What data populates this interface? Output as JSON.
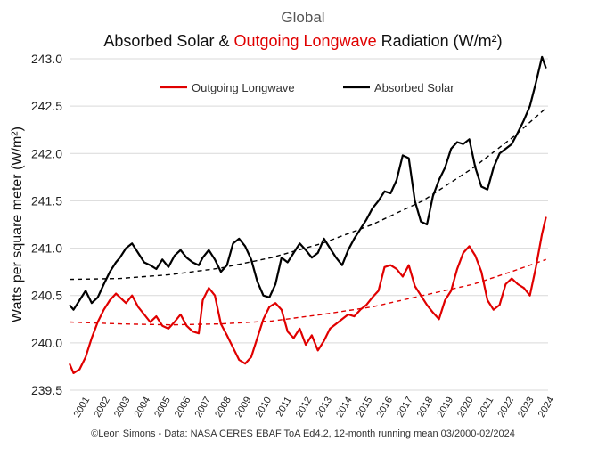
{
  "supertitle": "Global",
  "title": {
    "part1": "Absorbed Solar & ",
    "part2": "Outgoing Longwave",
    "part3": " Radiation  (W/m²)"
  },
  "footer": "©Leon Simons -  Data: NASA CERES EBAF ToA Ed4.2, 12-month running mean 03/2000-02/2024",
  "colors": {
    "absorbed_solar": "#000000",
    "outgoing_longwave": "#e00000",
    "highlight": "#e00000"
  },
  "chart_data": {
    "type": "line",
    "ylabel": "Watts per square meter (W/m²)",
    "xlabel": "",
    "ylim": [
      239.5,
      243.0
    ],
    "xlim": [
      2000.5,
      2024.2
    ],
    "yticks": [
      239.5,
      240.0,
      240.5,
      241.0,
      241.5,
      242.0,
      242.5,
      243.0
    ],
    "yticklabels": [
      "239.5",
      "240.0",
      "240.5",
      "241.0",
      "241.5",
      "242.0",
      "242.5",
      "243.0"
    ],
    "xticks": [
      "2001",
      "2002",
      "2003",
      "2004",
      "2005",
      "2006",
      "2007",
      "2008",
      "2009",
      "2010",
      "2011",
      "2012",
      "2013",
      "2014",
      "2015",
      "2016",
      "2017",
      "2018",
      "2019",
      "2020",
      "2021",
      "2022",
      "2023",
      "2024"
    ],
    "grid": "horizontal",
    "legend": "top",
    "series": [
      {
        "name": "Outgoing Longwave",
        "color": "#e00000",
        "style": "solid",
        "x": [
          2000.5,
          2000.7,
          2001.0,
          2001.3,
          2001.6,
          2001.9,
          2002.2,
          2002.5,
          2002.8,
          2003.0,
          2003.3,
          2003.6,
          2003.9,
          2004.2,
          2004.5,
          2004.8,
          2005.1,
          2005.4,
          2005.7,
          2006.0,
          2006.3,
          2006.6,
          2006.9,
          2007.1,
          2007.4,
          2007.7,
          2008.0,
          2008.3,
          2008.6,
          2008.9,
          2009.2,
          2009.5,
          2009.8,
          2010.1,
          2010.4,
          2010.7,
          2011.0,
          2011.3,
          2011.6,
          2011.9,
          2012.2,
          2012.5,
          2012.8,
          2013.1,
          2013.4,
          2013.7,
          2014.0,
          2014.3,
          2014.6,
          2014.9,
          2015.2,
          2015.5,
          2015.8,
          2016.1,
          2016.4,
          2016.7,
          2017.0,
          2017.3,
          2017.6,
          2017.9,
          2018.2,
          2018.5,
          2018.8,
          2019.1,
          2019.4,
          2019.7,
          2020.0,
          2020.3,
          2020.6,
          2020.9,
          2021.2,
          2021.5,
          2021.8,
          2022.1,
          2022.4,
          2022.7,
          2023.0,
          2023.3,
          2023.6,
          2023.9,
          2024.1
        ],
        "y": [
          239.78,
          239.68,
          239.72,
          239.85,
          240.05,
          240.22,
          240.35,
          240.45,
          240.52,
          240.48,
          240.42,
          240.5,
          240.38,
          240.3,
          240.22,
          240.28,
          240.18,
          240.15,
          240.22,
          240.3,
          240.18,
          240.12,
          240.1,
          240.45,
          240.58,
          240.5,
          240.2,
          240.08,
          239.95,
          239.82,
          239.78,
          239.85,
          240.05,
          240.25,
          240.38,
          240.42,
          240.35,
          240.12,
          240.05,
          240.15,
          239.98,
          240.08,
          239.92,
          240.02,
          240.15,
          240.2,
          240.25,
          240.3,
          240.28,
          240.35,
          240.4,
          240.48,
          240.55,
          240.8,
          240.82,
          240.78,
          240.7,
          240.82,
          240.6,
          240.5,
          240.4,
          240.32,
          240.25,
          240.45,
          240.55,
          240.78,
          240.95,
          241.02,
          240.92,
          240.75,
          240.45,
          240.35,
          240.4,
          240.62,
          240.68,
          240.62,
          240.58,
          240.5,
          240.8,
          241.15,
          241.33
        ]
      },
      {
        "name": "Absorbed Solar",
        "color": "#000000",
        "style": "solid",
        "x": [
          2000.5,
          2000.7,
          2001.0,
          2001.3,
          2001.6,
          2001.9,
          2002.2,
          2002.5,
          2002.8,
          2003.0,
          2003.3,
          2003.6,
          2003.9,
          2004.2,
          2004.5,
          2004.8,
          2005.1,
          2005.4,
          2005.7,
          2006.0,
          2006.3,
          2006.6,
          2006.9,
          2007.1,
          2007.4,
          2007.7,
          2008.0,
          2008.3,
          2008.6,
          2008.9,
          2009.2,
          2009.5,
          2009.8,
          2010.1,
          2010.4,
          2010.7,
          2011.0,
          2011.3,
          2011.6,
          2011.9,
          2012.2,
          2012.5,
          2012.8,
          2013.1,
          2013.4,
          2013.7,
          2014.0,
          2014.3,
          2014.6,
          2014.9,
          2015.2,
          2015.5,
          2015.8,
          2016.1,
          2016.4,
          2016.7,
          2017.0,
          2017.3,
          2017.6,
          2017.9,
          2018.2,
          2018.5,
          2018.8,
          2019.1,
          2019.4,
          2019.7,
          2020.0,
          2020.3,
          2020.6,
          2020.9,
          2021.2,
          2021.5,
          2021.8,
          2022.1,
          2022.4,
          2022.7,
          2023.0,
          2023.3,
          2023.6,
          2023.9,
          2024.1
        ],
        "y": [
          240.4,
          240.35,
          240.45,
          240.55,
          240.42,
          240.48,
          240.62,
          240.75,
          240.85,
          240.9,
          241.0,
          241.05,
          240.95,
          240.85,
          240.82,
          240.78,
          240.88,
          240.8,
          240.92,
          240.98,
          240.9,
          240.85,
          240.82,
          240.9,
          240.98,
          240.88,
          240.75,
          240.82,
          241.05,
          241.1,
          241.02,
          240.88,
          240.65,
          240.5,
          240.48,
          240.62,
          240.9,
          240.85,
          240.95,
          241.05,
          240.98,
          240.9,
          240.95,
          241.1,
          241.0,
          240.9,
          240.82,
          240.98,
          241.1,
          241.2,
          241.3,
          241.42,
          241.5,
          241.6,
          241.58,
          241.72,
          241.98,
          241.95,
          241.5,
          241.28,
          241.25,
          241.55,
          241.72,
          241.85,
          242.05,
          242.12,
          242.1,
          242.15,
          241.85,
          241.65,
          241.62,
          241.85,
          242.0,
          242.05,
          242.1,
          242.22,
          242.35,
          242.5,
          242.75,
          243.02,
          242.9
        ]
      },
      {
        "name": "Outgoing Longwave trend",
        "color": "#e00000",
        "style": "dashed",
        "x": [
          2000.5,
          2003,
          2005.5,
          2008,
          2010.5,
          2013,
          2015.5,
          2018,
          2020.5,
          2022.5,
          2024.1
        ],
        "y": [
          240.22,
          240.2,
          240.19,
          240.2,
          240.23,
          240.3,
          240.38,
          240.5,
          240.62,
          240.76,
          240.88
        ]
      },
      {
        "name": "Absorbed Solar trend",
        "color": "#000000",
        "style": "dashed",
        "x": [
          2000.5,
          2003,
          2005.5,
          2008,
          2010.5,
          2013,
          2015.5,
          2018,
          2020.5,
          2022.5,
          2024.1
        ],
        "y": [
          240.67,
          240.68,
          240.72,
          240.79,
          240.9,
          241.05,
          241.25,
          241.5,
          241.85,
          242.18,
          242.48
        ]
      }
    ]
  }
}
